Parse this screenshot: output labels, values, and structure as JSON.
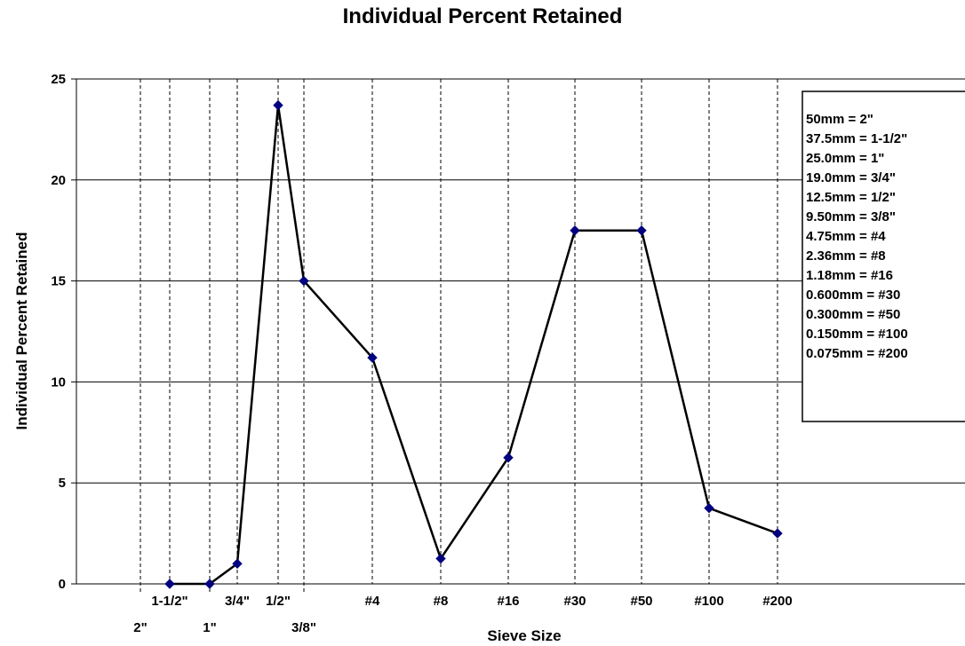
{
  "chart_data": {
    "type": "line",
    "title": "Individual Percent Retained",
    "xlabel": "Sieve Size",
    "ylabel": "Individual Percent Retained",
    "ylim": [
      0,
      25
    ],
    "y_ticks": [
      0,
      5,
      10,
      15,
      20,
      25
    ],
    "grid": "horizontal major gridlines; dashed vertical reference lines at each sieve size",
    "legend_placement": "right",
    "sieves": [
      {
        "label": "2\"",
        "mm": 50,
        "row": "lower"
      },
      {
        "label": "1-1/2\"",
        "mm": 37.5,
        "row": "upper"
      },
      {
        "label": "1\"",
        "mm": 25.0,
        "row": "lower"
      },
      {
        "label": "3/4\"",
        "mm": 19.0,
        "row": "upper"
      },
      {
        "label": "1/2\"",
        "mm": 12.5,
        "row": "upper"
      },
      {
        "label": "3/8\"",
        "mm": 9.5,
        "row": "lower"
      },
      {
        "label": "#4",
        "mm": 4.75,
        "row": "upper"
      },
      {
        "label": "#8",
        "mm": 2.36,
        "row": "upper"
      },
      {
        "label": "#16",
        "mm": 1.18,
        "row": "upper"
      },
      {
        "label": "#30",
        "mm": 0.6,
        "row": "upper"
      },
      {
        "label": "#50",
        "mm": 0.3,
        "row": "upper"
      },
      {
        "label": "#100",
        "mm": 0.15,
        "row": "upper"
      },
      {
        "label": "#200",
        "mm": 0.075,
        "row": "upper"
      }
    ],
    "series": [
      {
        "marker": "diamond",
        "color": "#000080",
        "line_color": "#000000",
        "points": [
          {
            "sieve": "1-1/2\"",
            "y": 0
          },
          {
            "sieve": "1\"",
            "y": 0
          },
          {
            "sieve": "3/4\"",
            "y": 1.0
          },
          {
            "sieve": "1/2\"",
            "y": 23.7
          },
          {
            "sieve": "3/8\"",
            "y": 15.0
          },
          {
            "sieve": "#4",
            "y": 11.2
          },
          {
            "sieve": "#8",
            "y": 1.25
          },
          {
            "sieve": "#16",
            "y": 6.25
          },
          {
            "sieve": "#30",
            "y": 17.5
          },
          {
            "sieve": "#50",
            "y": 17.5
          },
          {
            "sieve": "#100",
            "y": 3.75
          },
          {
            "sieve": "#200",
            "y": 2.5
          }
        ]
      }
    ],
    "legend": [
      "50mm = 2\"",
      "37.5mm = 1-1/2\"",
      "25.0mm = 1\"",
      "19.0mm = 3/4\"",
      "12.5mm = 1/2\"",
      "9.50mm = 3/8\"",
      "4.75mm = #4",
      "2.36mm = #8",
      "1.18mm = #16",
      "0.600mm = #30",
      "0.300mm = #50",
      "0.150mm = #100",
      "0.075mm = #200"
    ]
  }
}
